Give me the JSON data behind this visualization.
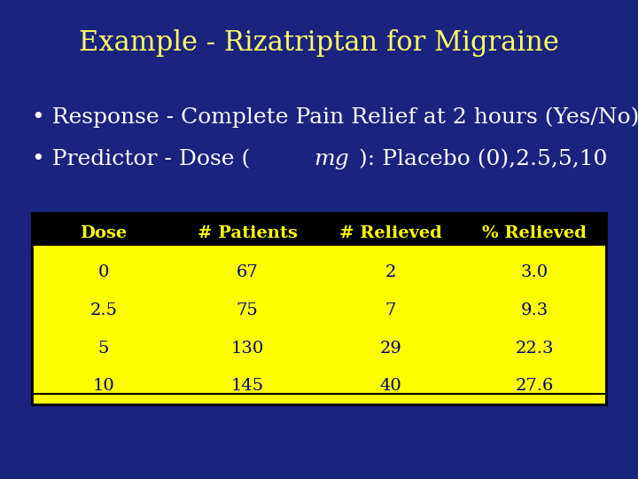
{
  "title": "Example - Rizatriptan for Migraine",
  "title_color": "#FFFF66",
  "bg_color": "#1a237e",
  "bullet1": "• Response - Complete Pain Relief at 2 hours (Yes/No)",
  "bullet2_prefix": "• Predictor - Dose (",
  "bullet2_italic": "mg",
  "bullet2_suffix": "): Placebo (0),2.5,5,10",
  "bullet_color": "#FFFFFF",
  "bullet_size": 18,
  "table_headers": [
    "Dose",
    "# Patients",
    "# Relieved",
    "% Relieved"
  ],
  "table_header_bg": "#000000",
  "table_header_color": "#FFFF00",
  "table_data": [
    [
      "0",
      "67",
      "2",
      "3.0"
    ],
    [
      "2.5",
      "75",
      "7",
      "9.3"
    ],
    [
      "5",
      "130",
      "29",
      "22.3"
    ],
    [
      "10",
      "145",
      "40",
      "27.6"
    ]
  ],
  "table_data_bg": "#FFFF00",
  "table_data_color": "#000080",
  "table_border_color": "#000000",
  "table_bottom_bar_color": "#FFFF00"
}
